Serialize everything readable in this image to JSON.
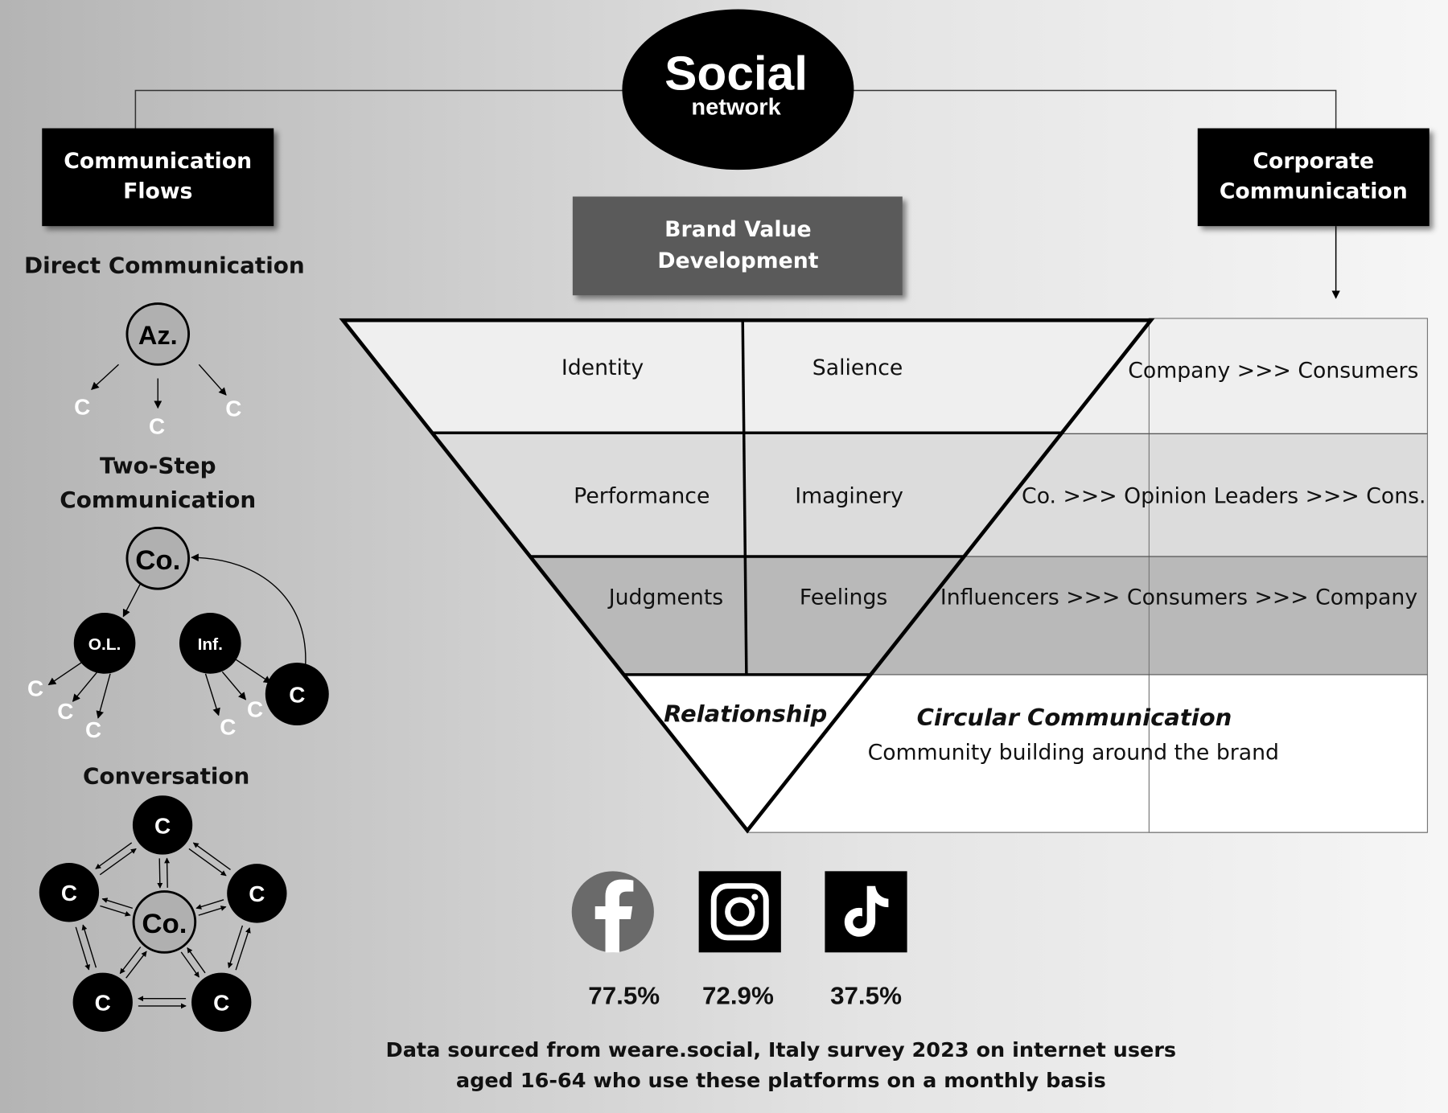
{
  "title": {
    "line1": "Social",
    "line2": "network"
  },
  "left_box": {
    "line1": "Communication",
    "line2": "Flows"
  },
  "right_box": {
    "line1": "Corporate",
    "line2": "Communication"
  },
  "center_box": {
    "line1": "Brand Value",
    "line2": "Development"
  },
  "pyramid": {
    "rows": [
      {
        "left": "Identity",
        "right": "Salience",
        "flow": "Company >>> Consumers",
        "fill": "#efefef"
      },
      {
        "left": "Performance",
        "right": "Imaginery",
        "flow": "Co. >>> Opinion Leaders >>> Cons.",
        "fill": "#dcdcdc"
      },
      {
        "left": "Judgments",
        "right": "Feelings",
        "flow": "Influencers >>> Consumers >>> Company",
        "fill": "#b9b9b9"
      }
    ],
    "apex": "Relationship",
    "apex_title": "Circular Communication",
    "apex_desc": "Community building around the brand"
  },
  "flows": {
    "direct": {
      "title": "Direct Communication",
      "source": "Az.",
      "target": "C"
    },
    "two_step": {
      "title1": "Two-Step",
      "title2": "Communication",
      "company": "Co.",
      "opinion_leaders": "O.L.",
      "influencers": "Inf.",
      "consumer": "C"
    },
    "conversation": {
      "title": "Conversation",
      "company": "Co.",
      "consumer": "C"
    }
  },
  "platforms": [
    {
      "name": "facebook",
      "icon": "facebook-icon",
      "value": "77.5%"
    },
    {
      "name": "instagram",
      "icon": "instagram-icon",
      "value": "72.9%"
    },
    {
      "name": "tiktok",
      "icon": "tiktok-icon",
      "value": "37.5%"
    }
  ],
  "footer": {
    "line1": "Data sourced from weare.social, Italy survey 2023 on internet users",
    "line2": "aged 16-64 who use these platforms on a monthly basis"
  }
}
